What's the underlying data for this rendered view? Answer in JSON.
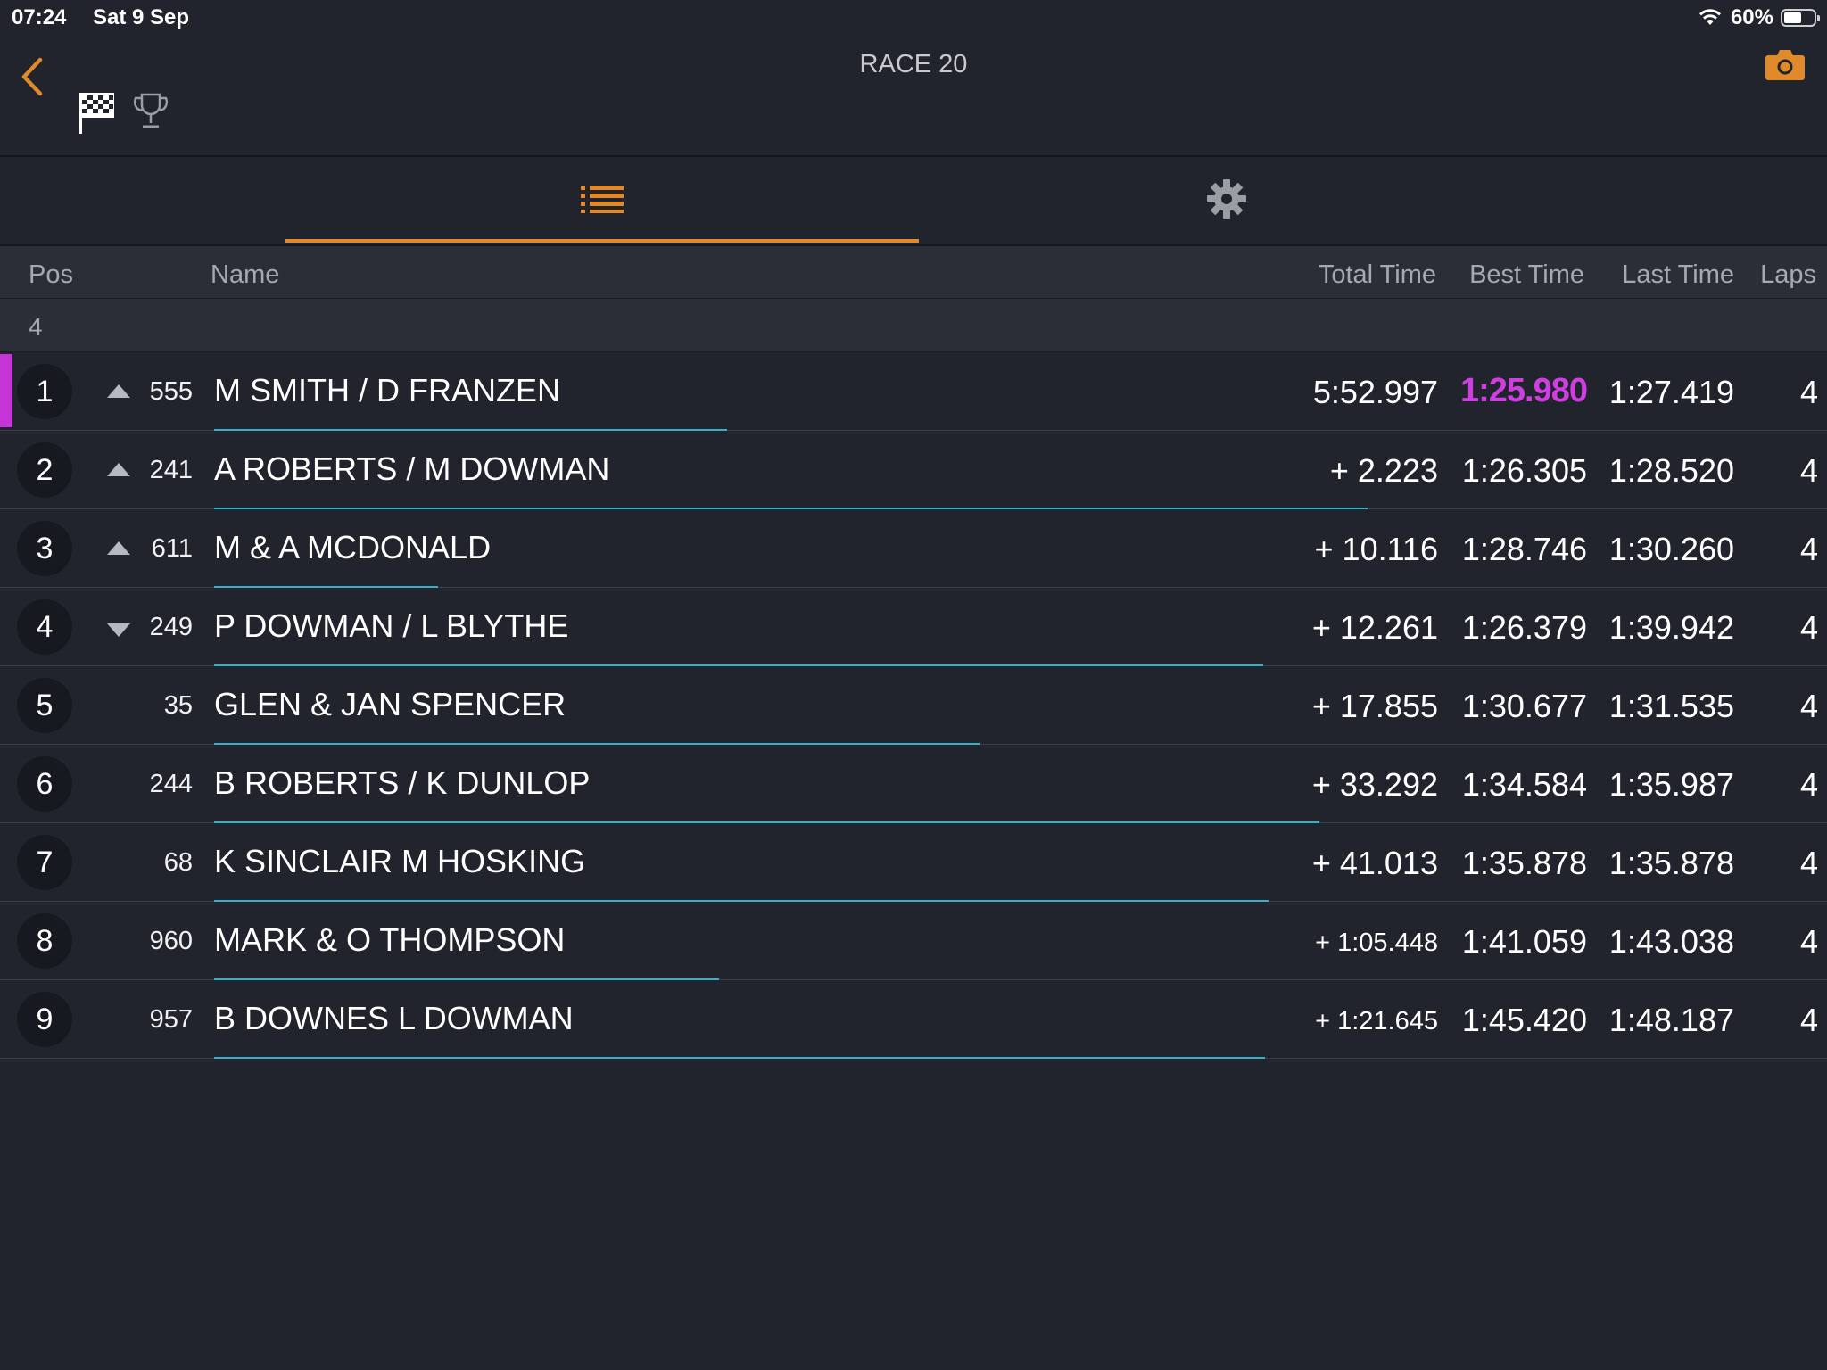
{
  "status_bar": {
    "time": "07:24",
    "date": "Sat 9 Sep",
    "battery_text": "60%",
    "battery_level": 0.6
  },
  "header": {
    "title": "RACE 20",
    "back_icon": "chevron-left-icon",
    "camera_icon": "camera-icon",
    "flag_icon": "checkered-flag-icon",
    "trophy_icon": "trophy-icon",
    "accent_color": "#e08a2c"
  },
  "tabs": [
    {
      "icon": "list-icon",
      "selected": true
    },
    {
      "icon": "gear-icon",
      "selected": false
    }
  ],
  "columns": {
    "pos": "Pos",
    "name": "Name",
    "total": "Total Time",
    "best": "Best Time",
    "last": "Last Time",
    "laps": "Laps"
  },
  "group": {
    "label": "4"
  },
  "colors": {
    "fastest_lap": "#cf3ee0",
    "progress": "#2fb4cc",
    "leader_marker": "#c534d6"
  },
  "rows": [
    {
      "pos": "1",
      "change": "up",
      "kart": "555",
      "name": "M SMITH / D FRANZEN",
      "total": "5:52.997",
      "best": "1:25.980",
      "last": "1:27.419",
      "laps": "4",
      "fastest": true,
      "leader": true,
      "progress": 0.32
    },
    {
      "pos": "2",
      "change": "up",
      "kart": "241",
      "name": "A ROBERTS / M DOWMAN",
      "total": "+ 2.223",
      "best": "1:26.305",
      "last": "1:28.520",
      "laps": "4",
      "progress": 0.72
    },
    {
      "pos": "3",
      "change": "up",
      "kart": "611",
      "name": "M & A MCDONALD",
      "total": "+ 10.116",
      "best": "1:28.746",
      "last": "1:30.260",
      "laps": "4",
      "progress": 0.14
    },
    {
      "pos": "4",
      "change": "down",
      "kart": "249",
      "name": "P DOWMAN / L BLYTHE",
      "total": "+ 12.261",
      "best": "1:26.379",
      "last": "1:39.942",
      "laps": "4",
      "progress": 0.655
    },
    {
      "pos": "5",
      "change": "",
      "kart": "35",
      "name": "GLEN & JAN SPENCER",
      "total": "+ 17.855",
      "best": "1:30.677",
      "last": "1:31.535",
      "laps": "4",
      "progress": 0.478
    },
    {
      "pos": "6",
      "change": "",
      "kart": "244",
      "name": "B ROBERTS / K DUNLOP",
      "total": "+ 33.292",
      "best": "1:34.584",
      "last": "1:35.987",
      "laps": "4",
      "progress": 0.69
    },
    {
      "pos": "7",
      "change": "",
      "kart": "68",
      "name": "K SINCLAIR M HOSKING",
      "total": "+ 41.013",
      "best": "1:35.878",
      "last": "1:35.878",
      "laps": "4",
      "progress": 0.658
    },
    {
      "pos": "8",
      "change": "",
      "kart": "960",
      "name": "MARK & O THOMPSON",
      "total": "+ 1:05.448",
      "best": "1:41.059",
      "last": "1:43.038",
      "laps": "4",
      "progress": 0.315,
      "total_small": true
    },
    {
      "pos": "9",
      "change": "",
      "kart": "957",
      "name": "B DOWNES L DOWMAN",
      "total": "+ 1:21.645",
      "best": "1:45.420",
      "last": "1:48.187",
      "laps": "4",
      "progress": 0.656,
      "total_small": true
    }
  ]
}
